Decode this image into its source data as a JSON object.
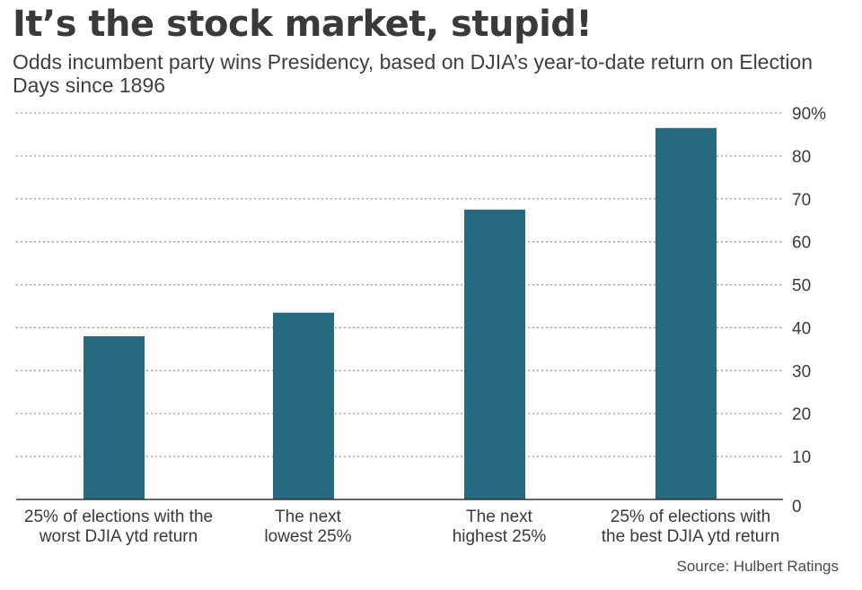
{
  "chart_data": {
    "type": "bar",
    "title": "It’s the stock market, stupid!",
    "subtitle": "Odds incumbent party wins Presidency, based on DJIA’s year-to-date return on Election Days since 1896",
    "categories": [
      [
        "25% of elections with the",
        "worst DJIA ytd return"
      ],
      [
        "The next",
        "lowest 25%"
      ],
      [
        "The next",
        "highest 25%"
      ],
      [
        "25% of elections with",
        "the best DJIA ytd return"
      ]
    ],
    "values": [
      38,
      43.5,
      67.5,
      86.5
    ],
    "y_ticks": [
      "90%",
      "80",
      "70",
      "60",
      "50",
      "40",
      "30",
      "20",
      "10",
      "0"
    ],
    "ylim": [
      0,
      90
    ],
    "y_axis_side": "right",
    "grid": true,
    "bar_color": "#266a80",
    "source": "Source: Hulbert Ratings"
  }
}
